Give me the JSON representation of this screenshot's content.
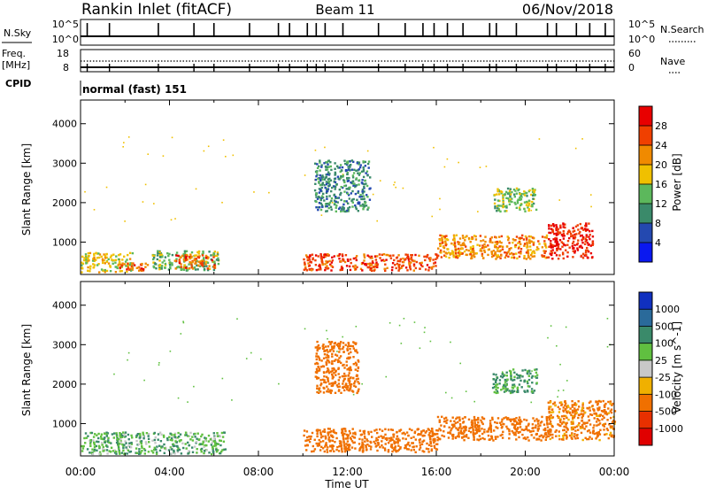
{
  "header": {
    "site": "Rankin Inlet (fitACF)",
    "beam": "Beam 11",
    "date": "06/Nov/2018"
  },
  "noise_panel": {
    "left_label": "N.Sky",
    "right_label": "N.Search",
    "left_ticks": [
      "10^5",
      "10^0"
    ],
    "right_ticks": [
      "10^5",
      "10^0"
    ]
  },
  "freq_panel": {
    "left_label_1": "Freq.",
    "left_label_2": "[MHz]",
    "right_label": "Nave",
    "left_ticks": [
      "18",
      "8"
    ],
    "right_ticks": [
      "60",
      "0"
    ]
  },
  "cpid_panel": {
    "label": "CPID",
    "value": "normal (fast) 151"
  },
  "x_axis": {
    "label": "Time UT",
    "ticks": [
      "00:00",
      "04:00",
      "08:00",
      "12:00",
      "16:00",
      "20:00",
      "00:00"
    ]
  },
  "chart_data": [
    {
      "type": "heatmap",
      "title": "Power",
      "ylabel": "Slant Range [km]",
      "xlabel": "",
      "x_range_hours": [
        0,
        24
      ],
      "ylim": [
        180,
        4600
      ],
      "yticks": [
        "1000",
        "2000",
        "3000",
        "4000"
      ],
      "colorbar": {
        "label": "Power [dB]",
        "ticks": [
          "4",
          "8",
          "12",
          "16",
          "20",
          "24",
          "28"
        ],
        "colors": [
          "#0a18f0",
          "#2449b0",
          "#3a8a6a",
          "#5cb85c",
          "#f0c000",
          "#f08a00",
          "#f04000",
          "#e80000"
        ]
      },
      "regions": [
        {
          "t": [
            0.0,
            2.3
          ],
          "r": [
            250,
            750
          ],
          "v": 18
        },
        {
          "t": [
            1.6,
            3.0
          ],
          "r": [
            300,
            500
          ],
          "v": 26
        },
        {
          "t": [
            3.2,
            6.2
          ],
          "r": [
            300,
            800
          ],
          "v": 14
        },
        {
          "t": [
            4.2,
            6.0
          ],
          "r": [
            350,
            700
          ],
          "v": 25
        },
        {
          "t": [
            10.0,
            16.0
          ],
          "r": [
            300,
            720
          ],
          "v": 26
        },
        {
          "t": [
            16.0,
            21.0
          ],
          "r": [
            600,
            1200
          ],
          "v": 22
        },
        {
          "t": [
            21.0,
            23.0
          ],
          "r": [
            600,
            1500
          ],
          "v": 28
        },
        {
          "t": [
            10.5,
            13.0
          ],
          "r": [
            1800,
            3100
          ],
          "v": 10
        },
        {
          "t": [
            18.5,
            20.5
          ],
          "r": [
            1800,
            2400
          ],
          "v": 15
        }
      ]
    },
    {
      "type": "heatmap",
      "title": "Velocity",
      "ylabel": "Slant Range [km]",
      "xlabel": "Time UT",
      "x_range_hours": [
        0,
        24
      ],
      "ylim": [
        180,
        4600
      ],
      "yticks": [
        "1000",
        "2000",
        "3000",
        "4000"
      ],
      "colorbar": {
        "label": "Velocity [m s^-1]",
        "ticks": [
          "1000",
          "500",
          "100",
          "25",
          "-25",
          "-100",
          "-500",
          "-1000"
        ],
        "colors": [
          "#1030c0",
          "#2a6a9a",
          "#3a8a6a",
          "#60c040",
          "#c8c8c8",
          "#f0b000",
          "#f07000",
          "#e83000",
          "#e00000"
        ]
      },
      "regions": [
        {
          "t": [
            0.0,
            6.5
          ],
          "r": [
            250,
            800
          ],
          "v": 80
        },
        {
          "t": [
            10.0,
            16.0
          ],
          "r": [
            300,
            900
          ],
          "v": -300
        },
        {
          "t": [
            16.0,
            21.0
          ],
          "r": [
            600,
            1200
          ],
          "v": -200
        },
        {
          "t": [
            21.0,
            24.0
          ],
          "r": [
            600,
            1600
          ],
          "v": -150
        },
        {
          "t": [
            10.5,
            12.5
          ],
          "r": [
            1800,
            3100
          ],
          "v": -200
        },
        {
          "t": [
            18.5,
            20.5
          ],
          "r": [
            1800,
            2400
          ],
          "v": 120
        }
      ]
    }
  ]
}
